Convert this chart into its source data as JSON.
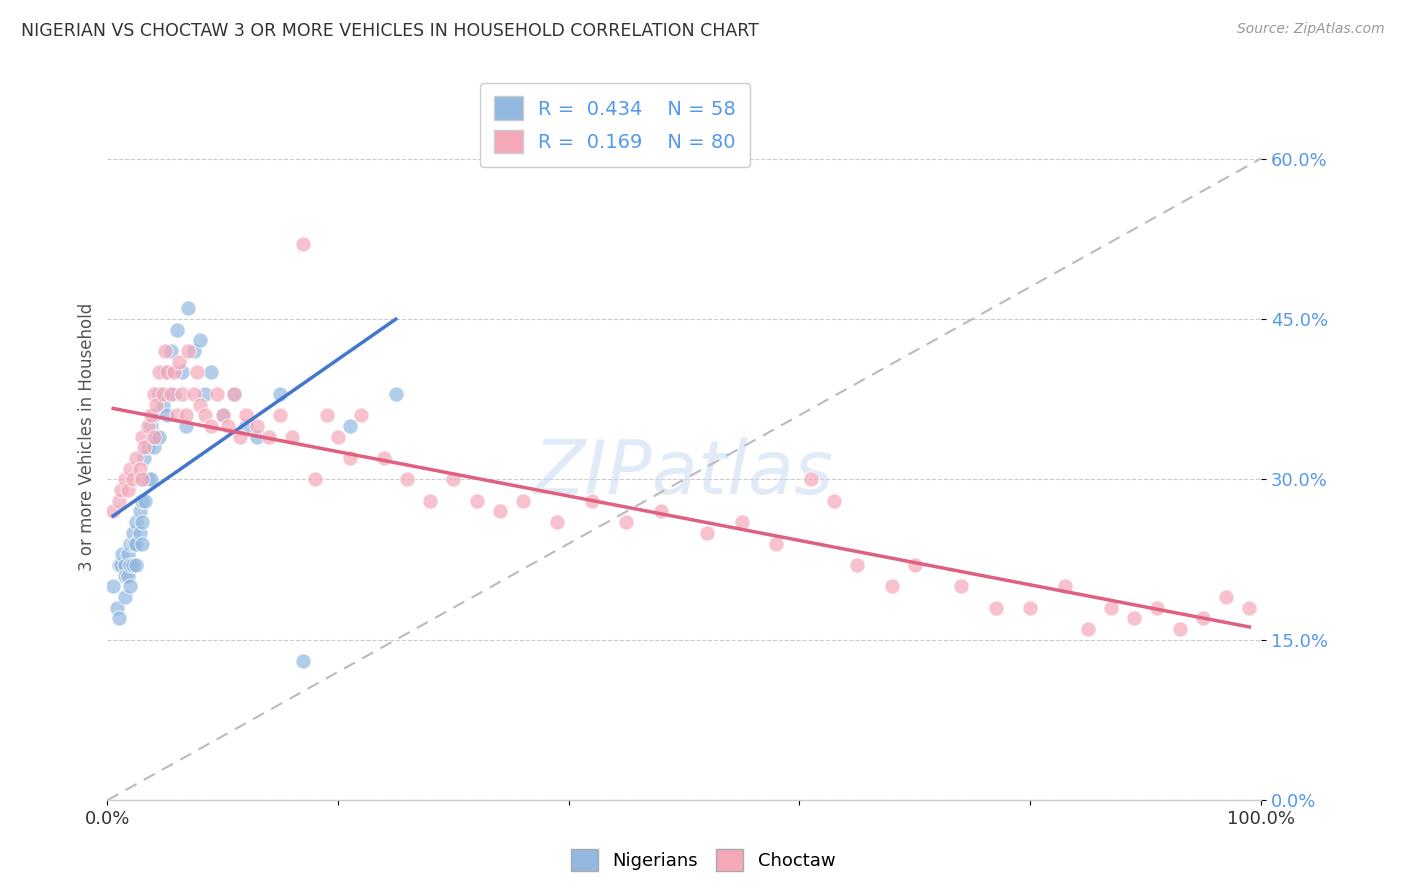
{
  "title": "NIGERIAN VS CHOCTAW 3 OR MORE VEHICLES IN HOUSEHOLD CORRELATION CHART",
  "source": "Source: ZipAtlas.com",
  "ylabel": "3 or more Vehicles in Household",
  "watermark": "ZIPatlas",
  "legend_r1": "R =  0.434",
  "legend_n1": "N = 58",
  "legend_r2": "R =  0.169",
  "legend_n2": "N = 80",
  "color_nigerian": "#92B8E0",
  "color_choctaw": "#F4A8B8",
  "color_nigerian_line": "#4477CC",
  "color_choctaw_line": "#E06080",
  "xlim": [
    0.0,
    1.0
  ],
  "ylim": [
    0.0,
    0.68
  ],
  "ytick_vals": [
    0.0,
    0.15,
    0.3,
    0.45,
    0.6
  ],
  "ytick_labels": [
    "0.0%",
    "15.0%",
    "30.0%",
    "45.0%",
    "60.0%"
  ],
  "nigerian_x": [
    0.005,
    0.008,
    0.01,
    0.01,
    0.012,
    0.013,
    0.015,
    0.015,
    0.015,
    0.018,
    0.018,
    0.02,
    0.02,
    0.02,
    0.022,
    0.022,
    0.023,
    0.025,
    0.025,
    0.025,
    0.028,
    0.028,
    0.03,
    0.03,
    0.03,
    0.03,
    0.032,
    0.033,
    0.035,
    0.035,
    0.038,
    0.038,
    0.04,
    0.04,
    0.042,
    0.045,
    0.045,
    0.048,
    0.05,
    0.052,
    0.055,
    0.058,
    0.06,
    0.065,
    0.068,
    0.07,
    0.075,
    0.08,
    0.085,
    0.09,
    0.1,
    0.11,
    0.12,
    0.13,
    0.15,
    0.17,
    0.21,
    0.25
  ],
  "nigerian_y": [
    0.2,
    0.18,
    0.22,
    0.17,
    0.22,
    0.23,
    0.22,
    0.21,
    0.19,
    0.23,
    0.21,
    0.22,
    0.2,
    0.24,
    0.22,
    0.25,
    0.24,
    0.26,
    0.24,
    0.22,
    0.27,
    0.25,
    0.3,
    0.28,
    0.26,
    0.24,
    0.32,
    0.28,
    0.33,
    0.3,
    0.35,
    0.3,
    0.36,
    0.33,
    0.34,
    0.38,
    0.34,
    0.37,
    0.4,
    0.36,
    0.42,
    0.38,
    0.44,
    0.4,
    0.35,
    0.46,
    0.42,
    0.43,
    0.38,
    0.4,
    0.36,
    0.38,
    0.35,
    0.34,
    0.38,
    0.13,
    0.35,
    0.38
  ],
  "choctaw_x": [
    0.005,
    0.01,
    0.012,
    0.015,
    0.018,
    0.02,
    0.022,
    0.025,
    0.028,
    0.03,
    0.03,
    0.032,
    0.035,
    0.038,
    0.04,
    0.04,
    0.042,
    0.045,
    0.048,
    0.05,
    0.052,
    0.055,
    0.058,
    0.06,
    0.062,
    0.065,
    0.068,
    0.07,
    0.075,
    0.078,
    0.08,
    0.085,
    0.09,
    0.095,
    0.1,
    0.105,
    0.11,
    0.115,
    0.12,
    0.13,
    0.14,
    0.15,
    0.16,
    0.17,
    0.18,
    0.19,
    0.2,
    0.21,
    0.22,
    0.24,
    0.26,
    0.28,
    0.3,
    0.32,
    0.34,
    0.36,
    0.39,
    0.42,
    0.45,
    0.48,
    0.52,
    0.55,
    0.58,
    0.61,
    0.63,
    0.65,
    0.68,
    0.7,
    0.74,
    0.77,
    0.8,
    0.83,
    0.85,
    0.87,
    0.89,
    0.91,
    0.93,
    0.95,
    0.97,
    0.99
  ],
  "choctaw_y": [
    0.27,
    0.28,
    0.29,
    0.3,
    0.29,
    0.31,
    0.3,
    0.32,
    0.31,
    0.34,
    0.3,
    0.33,
    0.35,
    0.36,
    0.38,
    0.34,
    0.37,
    0.4,
    0.38,
    0.42,
    0.4,
    0.38,
    0.4,
    0.36,
    0.41,
    0.38,
    0.36,
    0.42,
    0.38,
    0.4,
    0.37,
    0.36,
    0.35,
    0.38,
    0.36,
    0.35,
    0.38,
    0.34,
    0.36,
    0.35,
    0.34,
    0.36,
    0.34,
    0.52,
    0.3,
    0.36,
    0.34,
    0.32,
    0.36,
    0.32,
    0.3,
    0.28,
    0.3,
    0.28,
    0.27,
    0.28,
    0.26,
    0.28,
    0.26,
    0.27,
    0.25,
    0.26,
    0.24,
    0.3,
    0.28,
    0.22,
    0.2,
    0.22,
    0.2,
    0.18,
    0.18,
    0.2,
    0.16,
    0.18,
    0.17,
    0.18,
    0.16,
    0.17,
    0.19,
    0.18
  ]
}
